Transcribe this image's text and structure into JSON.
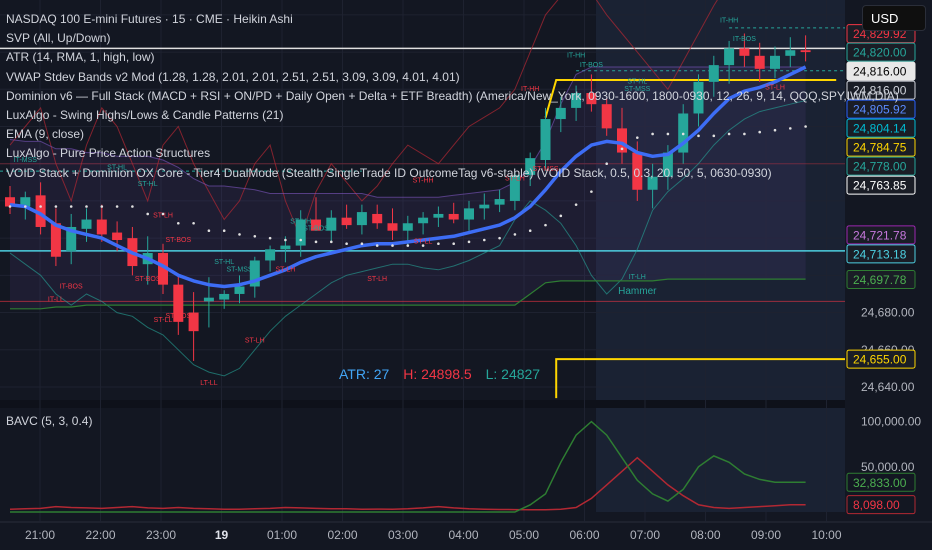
{
  "legend": {
    "title": "NASDAQ 100 E-mini Futures · 15 · CME · Heikin Ashi",
    "indicators": [
      "SVP (All, Up/Down)",
      "ATR (14, RMA, 1, high, low)",
      "VWAP Stdev Bands v2 Mod (1.28, 1.28, 2.01, 2.01, 2.51, 2.51, 3.09, 3.09, 4.01, 4.01)",
      "Dominion v6 — Full Stack (MACD + RSI + ON/PD + Daily Open + Delta + ETF Breadth) (America/New_York, 0930-1600, 1800-0930, 12, 26, 9, 14, QQQ,SPY,IWM,DIA)",
      "LuxAlgo - Swing Highs/Lows & Candle Patterns (21)",
      "EMA (9, close)",
      "LuxAlgo - Pure Price Action Structures",
      "VOID Stack + Dominion OX Core - Tier4 DualMode (Stealth SingleTrade ID OutcomeTag v6-stable) (VOID Stack, 0.5, 0.3, 20, 50, 5, 0630-0930)"
    ]
  },
  "currency_button": "USD",
  "atr_readout": {
    "atr": "ATR: 27",
    "high": "H: 24898.5",
    "low": "L: 24827"
  },
  "sub_pane": {
    "legend": "BAVC (5, 3, 0.4)",
    "axis": [
      "100,000.00",
      "50,000.00"
    ],
    "tags": [
      {
        "text": "32,833.00",
        "color": "#2e7d32",
        "value": 32833
      },
      {
        "text": "8,098.00",
        "color": "#b22833",
        "value": 8098
      }
    ]
  },
  "price_axis": {
    "ticks": [
      "24,680.00",
      "24,660.00",
      "24,640.00"
    ],
    "tags": [
      {
        "text": "24,829.92",
        "bg": "#1a1d26",
        "border": "#f23645",
        "fg": "#f23645",
        "price": 24829.92
      },
      {
        "text": "24,820.00",
        "bg": "#1a1d26",
        "border": "#26a69a",
        "fg": "#26a69a",
        "price": 24820.0
      },
      {
        "text": "24,816.00",
        "bg": "#e8e8e8",
        "border": "#e8e8e8",
        "fg": "#000000",
        "price": 24816.0
      },
      {
        "text": "24,816.00",
        "bg": "#1a1d26",
        "border": "#d1d4dc",
        "fg": "#d1d4dc",
        "price": 24816.0
      },
      {
        "text": "24,805.92",
        "bg": "#1a1d26",
        "border": "#2962ff",
        "fg": "#5b8bff",
        "price": 24805.92
      },
      {
        "text": "24,804.14",
        "bg": "#1a1d26",
        "border": "#00bcd4",
        "fg": "#00bcd4",
        "price": 24804.14
      },
      {
        "text": "24,784.75",
        "bg": "#1a1d26",
        "border": "#ffd600",
        "fg": "#ffd600",
        "price": 24784.75
      },
      {
        "text": "24,778.00",
        "bg": "#1a1d26",
        "border": "#26a69a",
        "fg": "#26a69a",
        "price": 24778.0
      },
      {
        "text": "24,763.85",
        "bg": "#1a1d26",
        "border": "#ffffff",
        "fg": "#ffffff",
        "price": 24763.85
      },
      {
        "text": "24,721.78",
        "bg": "#1a1d26",
        "border": "#9c27b0",
        "fg": "#c678dd",
        "price": 24721.78
      },
      {
        "text": "24,713.18",
        "bg": "#1a1d26",
        "border": "#4dd0e1",
        "fg": "#4dd0e1",
        "price": 24713.18
      },
      {
        "text": "24,697.78",
        "bg": "#1a1d26",
        "border": "#2e7d32",
        "fg": "#4caf50",
        "price": 24697.78
      },
      {
        "text": "24,655.00",
        "bg": "#1a1d26",
        "border": "#ffd600",
        "fg": "#ffd600",
        "price": 24655.0
      }
    ]
  },
  "time_axis": [
    "21:00",
    "22:00",
    "23:00",
    "19",
    "01:00",
    "02:00",
    "03:00",
    "04:00",
    "05:00",
    "06:00",
    "07:00",
    "08:00",
    "09:00",
    "10:00"
  ],
  "chart_labels": [
    {
      "text": "IT-HH",
      "color": "#26a69a",
      "price": 24836,
      "bar": 47
    },
    {
      "text": "IT-BOS",
      "color": "#26a69a",
      "price": 24826,
      "bar": 48
    },
    {
      "text": "IT-HH",
      "color": "#26a69a",
      "price": 24817,
      "bar": 37
    },
    {
      "text": "IT-BOS",
      "color": "#26a69a",
      "price": 24812,
      "bar": 38
    },
    {
      "text": "ST-LH",
      "color": "#f23645",
      "price": 24800,
      "bar": 50
    },
    {
      "text": "ST-HL",
      "color": "#26a69a",
      "price": 24757,
      "bar": 7
    },
    {
      "text": "IT-MSS",
      "color": "#26a69a",
      "price": 24761,
      "bar": 1
    },
    {
      "text": "ST-HL",
      "color": "#26a69a",
      "price": 24748,
      "bar": 9
    },
    {
      "text": "ST-LH",
      "color": "#f23645",
      "price": 24731,
      "bar": 10
    },
    {
      "text": "ST-BOS",
      "color": "#f23645",
      "price": 24718,
      "bar": 11
    },
    {
      "text": "IT-BOS",
      "color": "#f23645",
      "price": 24693,
      "bar": 4
    },
    {
      "text": "IT-LL",
      "color": "#f23645",
      "price": 24686,
      "bar": 3
    },
    {
      "text": "ST-BOS",
      "color": "#f23645",
      "price": 24697,
      "bar": 9
    },
    {
      "text": "ST-LL",
      "color": "#f23645",
      "price": 24675,
      "bar": 10
    },
    {
      "text": "ST-BOS",
      "color": "#f23645",
      "price": 24677,
      "bar": 11
    },
    {
      "text": "LT-LL",
      "color": "#f23645",
      "price": 24641,
      "bar": 13
    },
    {
      "text": "ST-LH",
      "color": "#f23645",
      "price": 24664,
      "bar": 16
    },
    {
      "text": "ST-HL",
      "color": "#26a69a",
      "price": 24706,
      "bar": 14
    },
    {
      "text": "ST-MSS",
      "color": "#26a69a",
      "price": 24702,
      "bar": 15
    },
    {
      "text": "ST-LH",
      "color": "#f23645",
      "price": 24702,
      "bar": 18
    },
    {
      "text": "ST-HH",
      "color": "#26a69a",
      "price": 24728,
      "bar": 19
    },
    {
      "text": "ST-BOS",
      "color": "#26a69a",
      "price": 24724,
      "bar": 20
    },
    {
      "text": "ST-LH",
      "color": "#f23645",
      "price": 24697,
      "bar": 24
    },
    {
      "text": "ST-HH",
      "color": "#f23645",
      "price": 24750,
      "bar": 27
    },
    {
      "text": "ST-LL",
      "color": "#f23645",
      "price": 24717,
      "bar": 27
    },
    {
      "text": "ST-LH",
      "color": "#f23645",
      "price": 24751,
      "bar": 33
    },
    {
      "text": "ST-MSS",
      "color": "#f23645",
      "price": 24756,
      "bar": 35
    },
    {
      "text": "IT-HH",
      "color": "#f23645",
      "price": 24799,
      "bar": 34
    },
    {
      "text": "ST-HL",
      "color": "#26a69a",
      "price": 24803,
      "bar": 41
    },
    {
      "text": "ST-MSS",
      "color": "#26a69a",
      "price": 24799,
      "bar": 41
    },
    {
      "text": "IT-LH",
      "color": "#26a69a",
      "price": 24698,
      "bar": 41
    },
    {
      "text": "Hammer",
      "color": "#26a69a",
      "price": 24690,
      "bar": 41
    }
  ],
  "colors": {
    "bg": "#131722",
    "up": "#26a69a",
    "down": "#f23645",
    "ema": "#3d6df5",
    "vwap": "#4dd0e1",
    "yellow": "#ffd600",
    "purple": "#7e57c2"
  },
  "chart_data": {
    "type": "candlestick",
    "title": "NASDAQ 100 E-mini Futures · 15 · CME · Heikin Ashi",
    "ylim": [
      24633,
      24848
    ],
    "x_range_bars": [
      0,
      54
    ],
    "candles": [
      {
        "o": 24742,
        "h": 24748,
        "l": 24733,
        "c": 24737
      },
      {
        "o": 24737,
        "h": 24745,
        "l": 24730,
        "c": 24742
      },
      {
        "o": 24743,
        "h": 24750,
        "l": 24722,
        "c": 24726
      },
      {
        "o": 24728,
        "h": 24736,
        "l": 24705,
        "c": 24710
      },
      {
        "o": 24713,
        "h": 24733,
        "l": 24706,
        "c": 24726
      },
      {
        "o": 24725,
        "h": 24736,
        "l": 24718,
        "c": 24730
      },
      {
        "o": 24730,
        "h": 24738,
        "l": 24718,
        "c": 24722
      },
      {
        "o": 24723,
        "h": 24729,
        "l": 24713,
        "c": 24719
      },
      {
        "o": 24720,
        "h": 24726,
        "l": 24700,
        "c": 24705
      },
      {
        "o": 24706,
        "h": 24721,
        "l": 24695,
        "c": 24712
      },
      {
        "o": 24712,
        "h": 24717,
        "l": 24690,
        "c": 24695
      },
      {
        "o": 24695,
        "h": 24700,
        "l": 24668,
        "c": 24675
      },
      {
        "o": 24680,
        "h": 24691,
        "l": 24654,
        "c": 24670
      },
      {
        "o": 24686,
        "h": 24699,
        "l": 24672,
        "c": 24688
      },
      {
        "o": 24687,
        "h": 24692,
        "l": 24682,
        "c": 24690
      },
      {
        "o": 24690,
        "h": 24700,
        "l": 24685,
        "c": 24694
      },
      {
        "o": 24694,
        "h": 24710,
        "l": 24688,
        "c": 24708
      },
      {
        "o": 24708,
        "h": 24716,
        "l": 24702,
        "c": 24714
      },
      {
        "o": 24714,
        "h": 24721,
        "l": 24707,
        "c": 24716
      },
      {
        "o": 24716,
        "h": 24735,
        "l": 24710,
        "c": 24730
      },
      {
        "o": 24730,
        "h": 24742,
        "l": 24724,
        "c": 24724
      },
      {
        "o": 24724,
        "h": 24735,
        "l": 24718,
        "c": 24731
      },
      {
        "o": 24731,
        "h": 24738,
        "l": 24725,
        "c": 24727
      },
      {
        "o": 24727,
        "h": 24738,
        "l": 24722,
        "c": 24734
      },
      {
        "o": 24733,
        "h": 24738,
        "l": 24725,
        "c": 24728
      },
      {
        "o": 24728,
        "h": 24736,
        "l": 24719,
        "c": 24724
      },
      {
        "o": 24724,
        "h": 24732,
        "l": 24716,
        "c": 24728
      },
      {
        "o": 24728,
        "h": 24734,
        "l": 24722,
        "c": 24731
      },
      {
        "o": 24731,
        "h": 24737,
        "l": 24726,
        "c": 24733
      },
      {
        "o": 24733,
        "h": 24739,
        "l": 24728,
        "c": 24730
      },
      {
        "o": 24730,
        "h": 24740,
        "l": 24724,
        "c": 24736
      },
      {
        "o": 24736,
        "h": 24744,
        "l": 24730,
        "c": 24738
      },
      {
        "o": 24738,
        "h": 24746,
        "l": 24734,
        "c": 24741
      },
      {
        "o": 24740,
        "h": 24756,
        "l": 24735,
        "c": 24754
      },
      {
        "o": 24754,
        "h": 24766,
        "l": 24748,
        "c": 24763
      },
      {
        "o": 24762,
        "h": 24790,
        "l": 24756,
        "c": 24784
      },
      {
        "o": 24784,
        "h": 24796,
        "l": 24777,
        "c": 24790
      },
      {
        "o": 24790,
        "h": 24802,
        "l": 24783,
        "c": 24798
      },
      {
        "o": 24798,
        "h": 24808,
        "l": 24788,
        "c": 24792
      },
      {
        "o": 24792,
        "h": 24795,
        "l": 24775,
        "c": 24779
      },
      {
        "o": 24779,
        "h": 24790,
        "l": 24760,
        "c": 24766
      },
      {
        "o": 24766,
        "h": 24772,
        "l": 24740,
        "c": 24746
      },
      {
        "o": 24746,
        "h": 24760,
        "l": 24736,
        "c": 24753
      },
      {
        "o": 24753,
        "h": 24770,
        "l": 24746,
        "c": 24766
      },
      {
        "o": 24766,
        "h": 24792,
        "l": 24760,
        "c": 24787
      },
      {
        "o": 24787,
        "h": 24808,
        "l": 24780,
        "c": 24804
      },
      {
        "o": 24804,
        "h": 24818,
        "l": 24796,
        "c": 24813
      },
      {
        "o": 24813,
        "h": 24826,
        "l": 24803,
        "c": 24822
      },
      {
        "o": 24822,
        "h": 24830,
        "l": 24812,
        "c": 24818
      },
      {
        "o": 24818,
        "h": 24825,
        "l": 24804,
        "c": 24811
      },
      {
        "o": 24811,
        "h": 24823,
        "l": 24806,
        "c": 24818
      },
      {
        "o": 24818,
        "h": 24828,
        "l": 24812,
        "c": 24821
      },
      {
        "o": 24821,
        "h": 24829,
        "l": 24815,
        "c": 24820
      }
    ],
    "ema": [
      24738,
      24737,
      24733,
      24727,
      24724,
      24722,
      24720,
      24716,
      24712,
      24709,
      24705,
      24700,
      24697,
      24695,
      24694,
      24695,
      24697,
      24700,
      24703,
      24707,
      24710,
      24712,
      24714,
      24716,
      24717,
      24717,
      24718,
      24719,
      24720,
      24721,
      24723,
      24725,
      24727,
      24731,
      24737,
      24746,
      24756,
      24764,
      24770,
      24772,
      24771,
      24766,
      24764,
      24765,
      24771,
      24778,
      24787,
      24795,
      24799,
      24801,
      24804,
      24808,
      24812
    ],
    "vwap_upper": [
      24773,
      24772,
      24772,
      24768,
      24768,
      24766,
      24766,
      24764,
      24764,
      24764,
      24762,
      24758,
      24752,
      24748,
      24748,
      24747,
      24746,
      24744,
      24744,
      24744,
      24744,
      24744,
      24744,
      24744,
      24742,
      24742,
      24742,
      24742,
      24742,
      24743,
      24744,
      24745,
      24746,
      24750,
      24758,
      24772,
      24792,
      24808,
      24812,
      24812,
      24812,
      24812,
      24812,
      24812,
      24812,
      24812,
      24812,
      24812,
      24812,
      24812,
      24812,
      24812,
      24812
    ],
    "vwap_mid": [
      24713,
      24713,
      24713,
      24713,
      24713,
      24713,
      24713,
      24713,
      24713,
      24713,
      24713,
      24713,
      24713,
      24713,
      24713,
      24713,
      24713,
      24713,
      24713,
      24713,
      24713,
      24713,
      24713,
      24713,
      24713,
      24713,
      24713,
      24713,
      24713,
      24713,
      24713,
      24713,
      24713,
      24713,
      24713,
      24713,
      24713,
      24713,
      24713,
      24713,
      24713,
      24713,
      24713,
      24713,
      24713,
      24713,
      24713,
      24713,
      24713,
      24713,
      24713,
      24713,
      24713
    ],
    "vwap_lower": [
      24682,
      24682,
      24682,
      24683,
      24683,
      24684,
      24684,
      24684,
      24684,
      24684,
      24684,
      24684,
      24684,
      24684,
      24684,
      24684,
      24684,
      24684,
      24684,
      24684,
      24684,
      24684,
      24684,
      24684,
      24684,
      24684,
      24684,
      24684,
      24684,
      24684,
      24684,
      24684,
      24684,
      24684,
      24690,
      24696,
      24697,
      24697,
      24697,
      24697,
      24697,
      24697,
      24697,
      24698,
      24698,
      24698,
      24698,
      24698,
      24698,
      24698,
      24698,
      24698,
      24698
    ],
    "stdev_upper": [
      24770,
      24780,
      24790,
      24760,
      24740,
      24770,
      24790,
      24780,
      24760,
      24740,
      24770,
      24780,
      24760,
      24745,
      24730,
      24740,
      24760,
      24770,
      24740,
      24720,
      24745,
      24760,
      24750,
      24740,
      24748,
      24760,
      24770,
      24765,
      24760,
      24770,
      24780,
      24785,
      24790,
      24800,
      24820,
      24840,
      24850,
      24860,
      24852,
      24840,
      24830,
      24820,
      24810,
      24800,
      24815,
      24830,
      24845,
      24858,
      24865,
      24870,
      24868,
      24866,
      24864
    ],
    "stdev_lower": [
      24712,
      24706,
      24700,
      24690,
      24684,
      24690,
      24686,
      24680,
      24678,
      24672,
      24668,
      24660,
      24652,
      24648,
      24646,
      24650,
      24660,
      24670,
      24678,
      24684,
      24690,
      24696,
      24700,
      24702,
      24704,
      24706,
      24706,
      24704,
      24703,
      24705,
      24708,
      24712,
      24716,
      24730,
      24740,
      24735,
      24728,
      24716,
      24700,
      24690,
      24698,
      24714,
      24735,
      24745,
      24752,
      24760,
      24770,
      24778,
      24784,
      24788,
      24790,
      24792,
      24794
    ],
    "dots": [
      24737,
      24737,
      24737,
      24737,
      24737,
      24737,
      24737,
      24737,
      24737,
      24733,
      24733,
      24728,
      24728,
      24724,
      24724,
      24722,
      24721,
      24720,
      24719,
      24719,
      24718,
      24718,
      24717,
      24717,
      24716,
      24716,
      24716,
      24716,
      24717,
      24717,
      24718,
      24719,
      24720,
      24722,
      24724,
      24727,
      24732,
      24738,
      24745,
      24760,
      24768,
      24774,
      24776,
      24776,
      24776,
      24775,
      24775,
      24776,
      24776,
      24777,
      24778,
      24779,
      24780
    ],
    "yellow_step": [
      {
        "bar": 35,
        "price": 24784.75
      },
      {
        "bar": 35.7,
        "price": 24805
      },
      {
        "bar": 54,
        "price": 24805
      }
    ],
    "yellow_bottom": {
      "bar": 35.7,
      "price_from": 24634,
      "price_to": 24655
    },
    "bavc_green": [
      0,
      0,
      0,
      0,
      0,
      0,
      0,
      0,
      0,
      0,
      0,
      0,
      0,
      0,
      0,
      0,
      0,
      0,
      0,
      0,
      0,
      0,
      0,
      0,
      0,
      0,
      0,
      0,
      0,
      0,
      0,
      0,
      0,
      0,
      8000,
      20000,
      55000,
      85000,
      100000,
      85000,
      60000,
      35000,
      20000,
      12000,
      25000,
      50000,
      62000,
      55000,
      42000,
      36000,
      33000,
      33000,
      32833
    ],
    "bavc_red": [
      3000,
      3500,
      4000,
      6000,
      5000,
      4500,
      4000,
      5000,
      6000,
      4500,
      4000,
      5000,
      4000,
      3500,
      3000,
      3000,
      3500,
      4000,
      5000,
      4500,
      4000,
      3500,
      3500,
      3000,
      3200,
      3000,
      3500,
      4500,
      6000,
      4500,
      3500,
      3000,
      2800,
      2600,
      2500,
      2500,
      3000,
      5000,
      15000,
      30000,
      45000,
      60000,
      45000,
      30000,
      18000,
      8000,
      5000,
      4000,
      5000,
      6000,
      7000,
      8000,
      8098
    ],
    "bavc_ylim": [
      0,
      115000
    ]
  }
}
